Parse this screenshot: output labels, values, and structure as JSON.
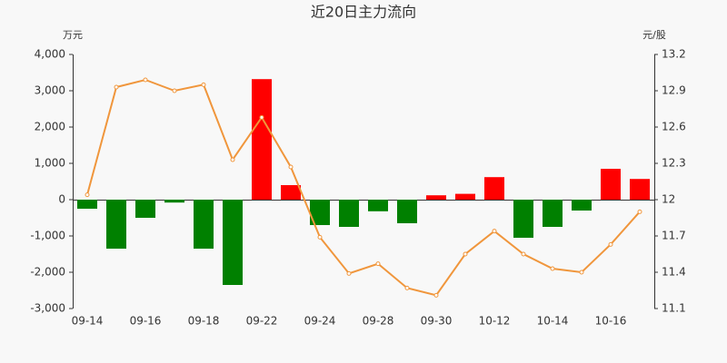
{
  "chart_data": {
    "type": "bar-line",
    "title": "近20日主力流向",
    "y_label": "万元",
    "y2_label": "元/股",
    "categories": [
      "09-14",
      null,
      "09-16",
      null,
      "09-18",
      null,
      "09-22",
      null,
      "09-24",
      null,
      "09-28",
      null,
      "09-30",
      null,
      "10-12",
      null,
      "10-14",
      null,
      "10-16",
      null
    ],
    "values": [
      -250,
      -1350,
      -500,
      -80,
      -1350,
      -2350,
      3320,
      400,
      -700,
      -750,
      -320,
      -650,
      120,
      160,
      620,
      -1050,
      -750,
      -300,
      850,
      570
    ],
    "line_values": [
      12.04,
      12.93,
      12.99,
      12.9,
      12.95,
      12.33,
      12.68,
      12.27,
      11.69,
      11.39,
      11.47,
      11.27,
      11.21,
      11.55,
      11.74,
      11.55,
      11.43,
      11.4,
      11.63,
      11.9
    ],
    "positive_color": "#ff0000",
    "negative_color": "#008000",
    "line_color": "#f0963c",
    "ylim": [
      -3000,
      4000
    ],
    "yticks": [
      {
        "value": -3000,
        "label": "-3,000"
      },
      {
        "value": -2000,
        "label": "-2,000"
      },
      {
        "value": -1000,
        "label": "-1,000"
      },
      0,
      {
        "value": 1000,
        "label": "1,000"
      },
      {
        "value": 2000,
        "label": "2,000"
      },
      {
        "value": 3000,
        "label": "3,000"
      },
      {
        "value": 4000,
        "label": "4,000"
      }
    ],
    "y2lim": [
      11.1,
      13.2
    ],
    "y2ticks": [
      11.1,
      11.4,
      11.7,
      12,
      12.3,
      12.6,
      12.9,
      13.2
    ]
  }
}
